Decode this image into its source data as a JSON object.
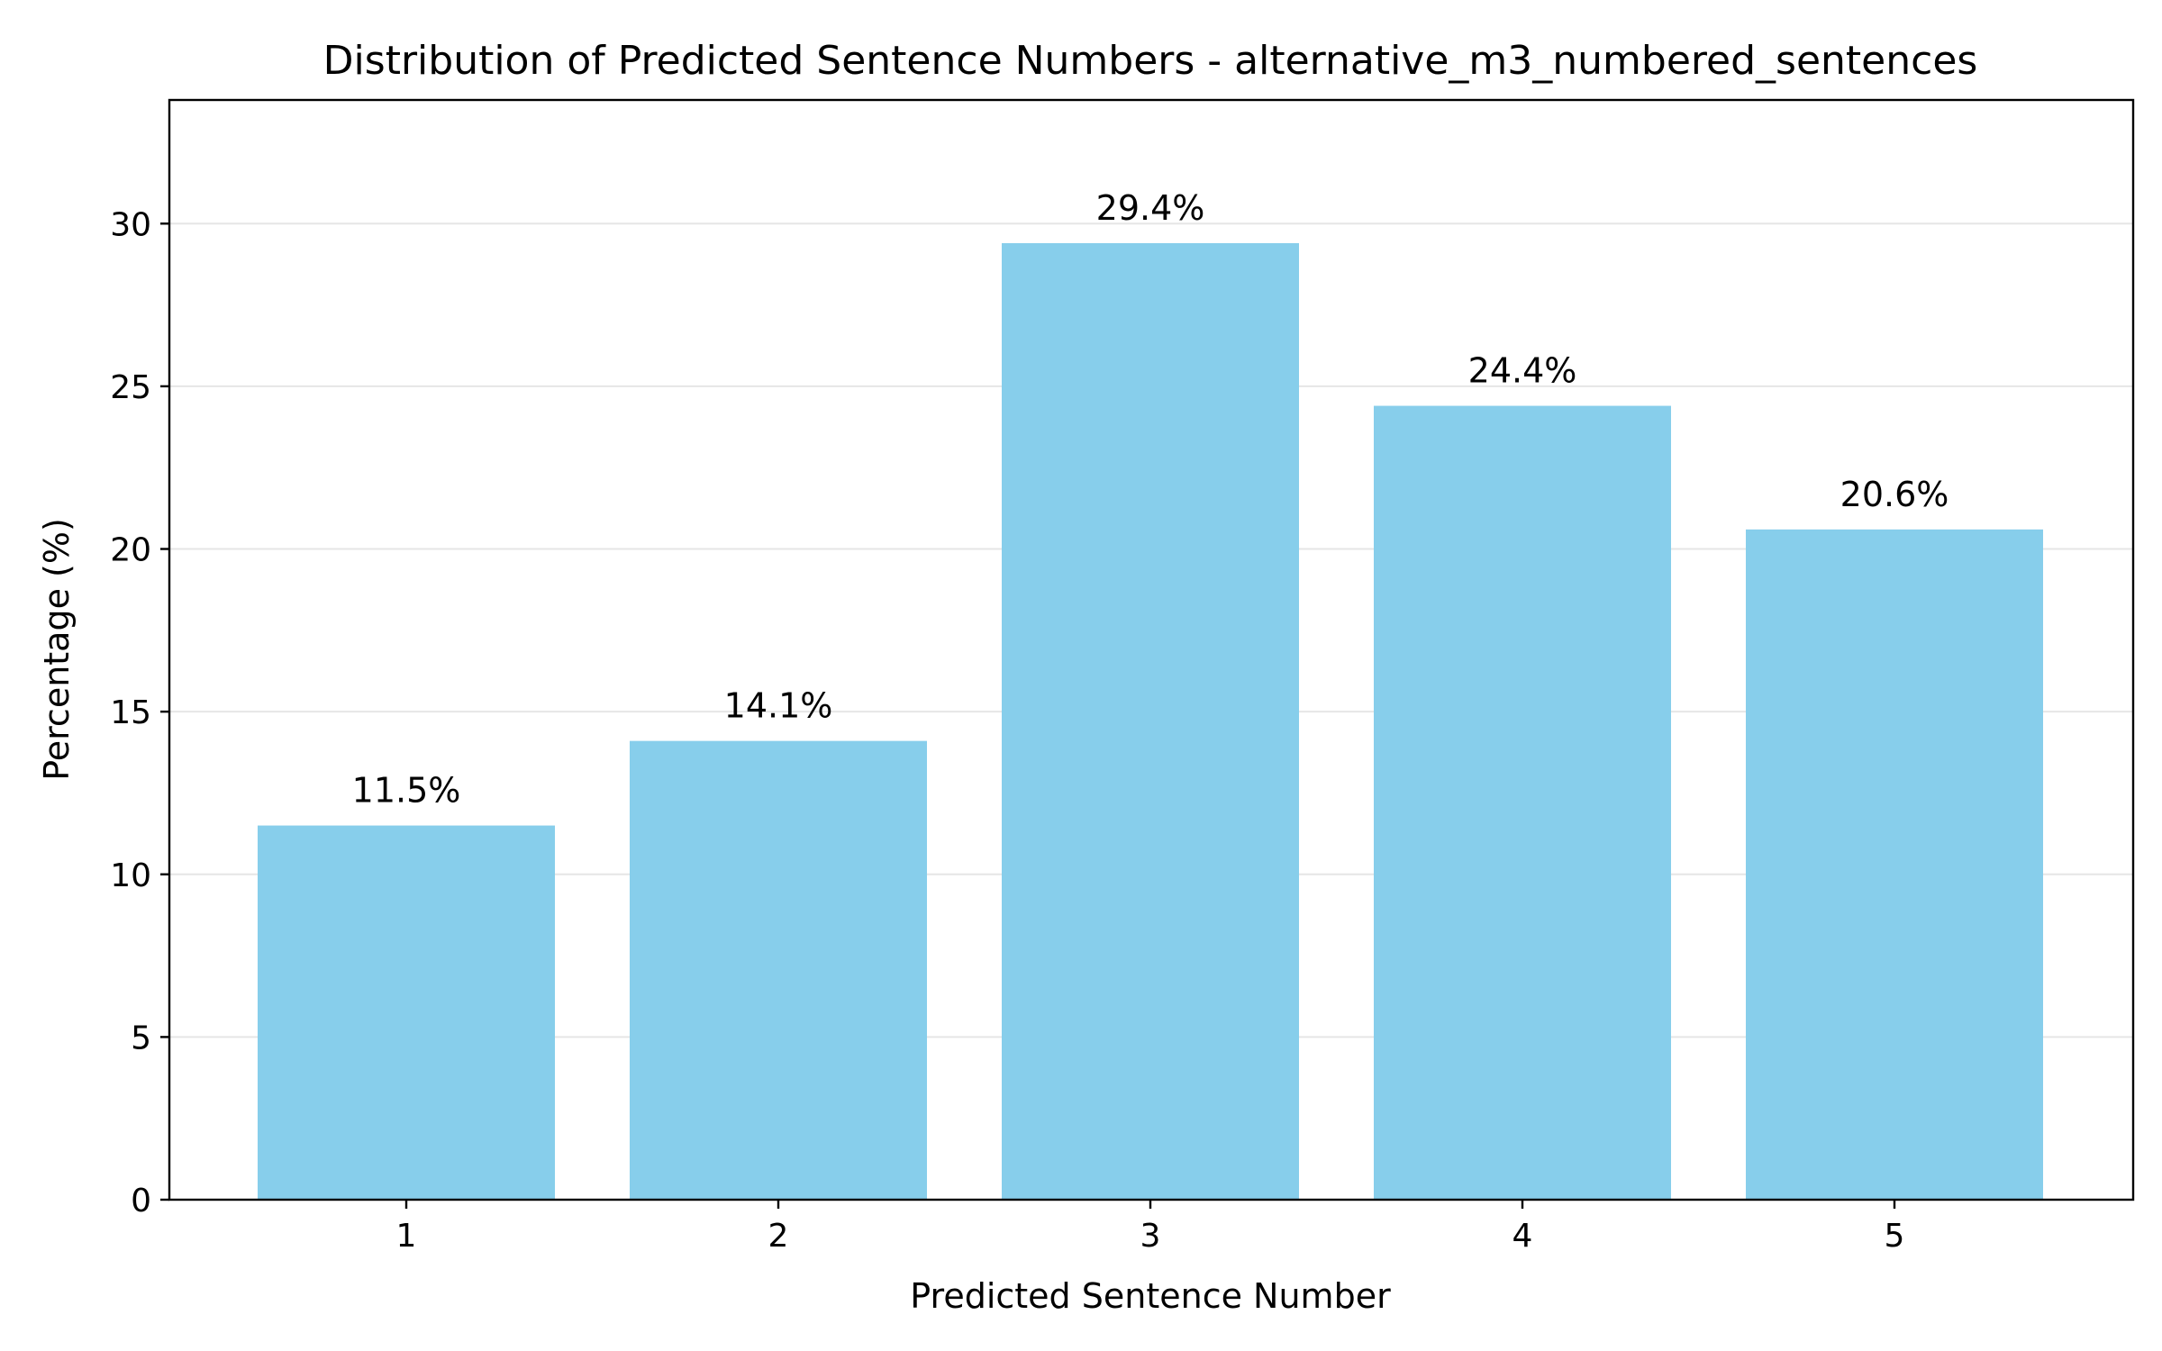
{
  "chart_data": {
    "type": "bar",
    "title": "Distribution of Predicted Sentence Numbers - alternative_m3_numbered_sentences",
    "xlabel": "Predicted Sentence Number",
    "ylabel": "Percentage (%)",
    "categories": [
      "1",
      "2",
      "3",
      "4",
      "5"
    ],
    "values": [
      11.5,
      14.1,
      29.4,
      24.4,
      20.6
    ],
    "value_labels": [
      "11.5%",
      "14.1%",
      "29.4%",
      "24.4%",
      "20.6%"
    ],
    "ylim": [
      0,
      33.8
    ],
    "yticks": [
      0,
      5,
      10,
      15,
      20,
      25,
      30
    ],
    "grid": "y",
    "bar_color": "#87ceeb"
  }
}
